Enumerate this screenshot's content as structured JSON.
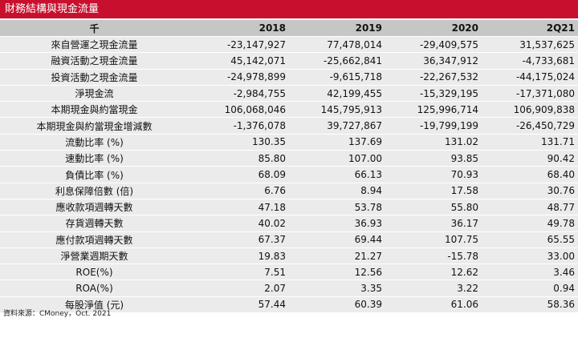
{
  "title": "財務結構與現金流量",
  "header": {
    "label": "千",
    "years": [
      "2018",
      "2019",
      "2020",
      "2Q21"
    ]
  },
  "rows": [
    {
      "label": "來自營運之現金流量",
      "values": [
        "-23,147,927",
        "77,478,014",
        "-29,409,575",
        "31,537,625"
      ]
    },
    {
      "label": "融資活動之現金流量",
      "values": [
        "45,142,071",
        "-25,662,841",
        "36,347,912",
        "-4,733,681"
      ]
    },
    {
      "label": "投資活動之現金流量",
      "values": [
        "-24,978,899",
        "-9,615,718",
        "-22,267,532",
        "-44,175,024"
      ]
    },
    {
      "label": "淨現金流",
      "values": [
        "-2,984,755",
        "42,199,455",
        "-15,329,195",
        "-17,371,080"
      ]
    },
    {
      "label": "本期現金與約當現金",
      "values": [
        "106,068,046",
        "145,795,913",
        "125,996,714",
        "106,909,838"
      ]
    },
    {
      "label": "本期現金與約當現金增減數",
      "values": [
        "-1,376,078",
        "39,727,867",
        "-19,799,199",
        "-26,450,729"
      ]
    },
    {
      "label": "流動比率 (%)",
      "values": [
        "130.35",
        "137.69",
        "131.02",
        "131.71"
      ]
    },
    {
      "label": "速動比率 (%)",
      "values": [
        "85.80",
        "107.00",
        "93.85",
        "90.42"
      ]
    },
    {
      "label": "負債比率 (%)",
      "values": [
        "68.09",
        "66.13",
        "70.93",
        "68.40"
      ]
    },
    {
      "label": "利息保障倍數 (倍)",
      "values": [
        "6.76",
        "8.94",
        "17.58",
        "30.76"
      ]
    },
    {
      "label": "應收款項週轉天數",
      "values": [
        "47.18",
        "53.78",
        "55.80",
        "48.77"
      ]
    },
    {
      "label": "存貨週轉天數",
      "values": [
        "40.02",
        "36.93",
        "36.17",
        "49.78"
      ]
    },
    {
      "label": "應付款項週轉天數",
      "values": [
        "67.37",
        "69.44",
        "107.75",
        "65.55"
      ]
    },
    {
      "label": "淨營業週期天數",
      "values": [
        "19.83",
        "21.27",
        "-15.78",
        "33.00"
      ]
    },
    {
      "label": "ROE(%)",
      "values": [
        "7.51",
        "12.56",
        "12.62",
        "3.46"
      ]
    },
    {
      "label": "ROA(%)",
      "values": [
        "2.07",
        "3.35",
        "3.22",
        "0.94"
      ]
    },
    {
      "label": "每股淨值 (元)",
      "values": [
        "57.44",
        "60.39",
        "61.06",
        "58.36"
      ]
    }
  ],
  "source_note": "資料來源：CMoney，Oct. 2021",
  "colors": {
    "title_bar": "#c8102e",
    "header_bg": "#c6c6c6",
    "row_bg": "#ebebeb"
  }
}
